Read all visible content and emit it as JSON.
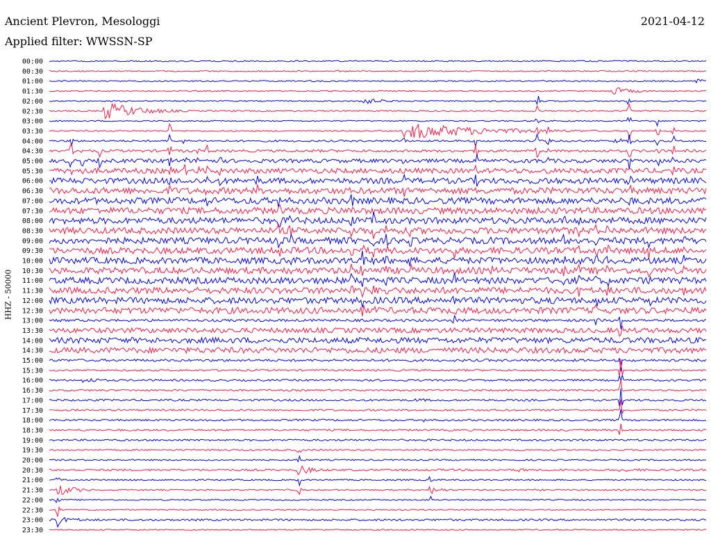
{
  "header": {
    "station": "Ancient Plevron, Mesologgi",
    "date": "2021-04-12",
    "filter": "Applied filter: WWSSN-SP"
  },
  "channel_label": "HHZ - 50000",
  "colors": {
    "trace_a": "#0000ee",
    "trace_b": "#ff1744",
    "background": "#ffffff",
    "text": "#000000"
  },
  "chart_data": {
    "type": "line",
    "title": "Ancient Plevron, Mesologgi",
    "subtitle": "Applied filter: WWSSN-SP",
    "ylabel": "HHZ - 50000",
    "xlabel": "",
    "grid": false,
    "legend": "none",
    "row_labels": [
      "00:00",
      "00:30",
      "01:00",
      "01:30",
      "02:00",
      "02:30",
      "03:00",
      "03:30",
      "04:00",
      "04:30",
      "05:00",
      "05:30",
      "06:00",
      "06:30",
      "07:00",
      "07:30",
      "08:00",
      "08:30",
      "09:00",
      "09:30",
      "10:00",
      "10:30",
      "11:00",
      "11:30",
      "12:00",
      "12:30",
      "13:00",
      "13:30",
      "14:00",
      "14:30",
      "15:00",
      "15:30",
      "16:00",
      "16:30",
      "17:00",
      "17:30",
      "18:00",
      "18:30",
      "19:00",
      "19:30",
      "20:00",
      "20:30",
      "21:00",
      "21:30",
      "22:00",
      "22:30",
      "23:00",
      "23:30"
    ],
    "row_colors": [
      "blue",
      "red"
    ],
    "x_minutes": [
      0,
      30
    ],
    "noise_level": [
      1,
      1,
      1,
      1,
      1,
      1,
      1,
      1,
      1.5,
      2,
      3,
      4,
      4.5,
      5,
      5,
      5,
      5,
      5,
      5,
      5,
      5,
      5,
      5,
      5,
      5,
      5,
      2,
      4,
      4.5,
      4.5,
      2,
      1.5,
      1.5,
      1.5,
      1.5,
      1.5,
      1.5,
      1.5,
      1.5,
      1.2,
      1.2,
      1.5,
      1.2,
      1.2,
      1,
      1,
      1.5,
      1
    ],
    "events": [
      {
        "row": 1,
        "minute": 11.5,
        "amplitude": 1,
        "duration": 0.6
      },
      {
        "row": 1,
        "minute": 13.2,
        "amplitude": 1.5,
        "duration": 1.2
      },
      {
        "row": 1,
        "minute": 29.0,
        "amplitude": 1.5,
        "duration": 0.6
      },
      {
        "row": 2,
        "minute": 22.5,
        "amplitude": 1.5,
        "duration": 1.0
      },
      {
        "row": 2,
        "minute": 29.5,
        "amplitude": 5,
        "duration": 0.6
      },
      {
        "row": 3,
        "minute": 14.8,
        "amplitude": 1.5,
        "duration": 1.2
      },
      {
        "row": 3,
        "minute": 25.6,
        "amplitude": 7,
        "duration": 1.0
      },
      {
        "row": 4,
        "minute": 6.5,
        "amplitude": 1.2,
        "duration": 0.8
      },
      {
        "row": 4,
        "minute": 14.0,
        "amplitude": 7,
        "duration": 1.0
      },
      {
        "row": 5,
        "minute": 2.5,
        "amplitude": 14,
        "duration": 1.6
      },
      {
        "row": 5,
        "minute": 7.2,
        "amplitude": 1.5,
        "duration": 0.8
      },
      {
        "row": 5,
        "minute": 8.3,
        "amplitude": 1.5,
        "duration": 0.8
      },
      {
        "row": 7,
        "minute": 16.5,
        "amplitude": 12,
        "duration": 3.5
      },
      {
        "row": 8,
        "minute": 25.8,
        "amplitude": 5,
        "duration": 0.8
      },
      {
        "row": 10,
        "minute": 30.0,
        "amplitude": 10,
        "duration": 0.5
      }
    ],
    "spikes": [
      {
        "minute": 1.0,
        "row_from": 8,
        "row_to": 11,
        "amplitude": 14
      },
      {
        "minute": 1.5,
        "row_from": 9,
        "row_to": 12,
        "amplitude": 10
      },
      {
        "minute": 2.3,
        "row_from": 9,
        "row_to": 11,
        "amplitude": 10
      },
      {
        "minute": 5.5,
        "row_from": 7,
        "row_to": 13,
        "amplitude": 12
      },
      {
        "minute": 6.2,
        "row_from": 8,
        "row_to": 12,
        "amplitude": 10
      },
      {
        "minute": 6.8,
        "row_from": 9,
        "row_to": 11,
        "amplitude": 8
      },
      {
        "minute": 7.2,
        "row_from": 9,
        "row_to": 14,
        "amplitude": 10
      },
      {
        "minute": 7.8,
        "row_from": 10,
        "row_to": 13,
        "amplitude": 9
      },
      {
        "minute": 9.5,
        "row_from": 11,
        "row_to": 15,
        "amplitude": 10
      },
      {
        "minute": 10.5,
        "row_from": 14,
        "row_to": 19,
        "amplitude": 14
      },
      {
        "minute": 11.0,
        "row_from": 16,
        "row_to": 22,
        "amplitude": 14
      },
      {
        "minute": 13.8,
        "row_from": 14,
        "row_to": 23,
        "amplitude": 16
      },
      {
        "minute": 14.3,
        "row_from": 17,
        "row_to": 25,
        "amplitude": 16
      },
      {
        "minute": 14.8,
        "row_from": 16,
        "row_to": 25,
        "amplitude": 14
      },
      {
        "minute": 15.4,
        "row_from": 17,
        "row_to": 23,
        "amplitude": 12
      },
      {
        "minute": 16.2,
        "row_from": 7,
        "row_to": 13,
        "amplitude": 10
      },
      {
        "minute": 16.5,
        "row_from": 17,
        "row_to": 21,
        "amplitude": 12
      },
      {
        "minute": 18.5,
        "row_from": 18,
        "row_to": 26,
        "amplitude": 14
      },
      {
        "minute": 19.5,
        "row_from": 7,
        "row_to": 12,
        "amplitude": 12
      },
      {
        "minute": 20.2,
        "row_from": 17,
        "row_to": 21,
        "amplitude": 10
      },
      {
        "minute": 22.3,
        "row_from": 4,
        "row_to": 10,
        "amplitude": 14
      },
      {
        "minute": 22.8,
        "row_from": 7,
        "row_to": 12,
        "amplitude": 10
      },
      {
        "minute": 23.5,
        "row_from": 15,
        "row_to": 22,
        "amplitude": 12
      },
      {
        "minute": 24.2,
        "row_from": 16,
        "row_to": 24,
        "amplitude": 12
      },
      {
        "minute": 25.0,
        "row_from": 17,
        "row_to": 26,
        "amplitude": 14
      },
      {
        "minute": 25.5,
        "row_from": 17,
        "row_to": 23,
        "amplitude": 12
      },
      {
        "minute": 26.5,
        "row_from": 4,
        "row_to": 14,
        "amplitude": 14
      },
      {
        "minute": 27.4,
        "row_from": 18,
        "row_to": 24,
        "amplitude": 14
      },
      {
        "minute": 27.8,
        "row_from": 6,
        "row_to": 10,
        "amplitude": 12
      },
      {
        "minute": 28.5,
        "row_from": 7,
        "row_to": 12,
        "amplitude": 10
      },
      {
        "minute": 29.0,
        "row_from": 18,
        "row_to": 23,
        "amplitude": 10
      },
      {
        "minute": 26.1,
        "row_from": 26,
        "row_to": 37,
        "amplitude": 18
      },
      {
        "minute": 0.4,
        "row_from": 42,
        "row_to": 46,
        "amplitude": 12
      },
      {
        "minute": 11.4,
        "row_from": 39,
        "row_to": 43,
        "amplitude": 12
      },
      {
        "minute": 17.4,
        "row_from": 42,
        "row_to": 44,
        "amplitude": 8
      },
      {
        "minute": 26.1,
        "row_from": 31,
        "row_to": 33,
        "amplitude": 10
      }
    ],
    "bursts": [
      {
        "row": 32,
        "minute": 1.5,
        "amplitude": 4,
        "duration": 1.2
      },
      {
        "row": 46,
        "minute": 0.1,
        "amplitude": 6,
        "duration": 1.2
      },
      {
        "row": 41,
        "minute": 11.3,
        "amplitude": 8,
        "duration": 0.8
      },
      {
        "row": 43,
        "minute": 0.5,
        "amplitude": 8,
        "duration": 0.8
      },
      {
        "row": 43,
        "minute": 17.4,
        "amplitude": 6,
        "duration": 0.6
      },
      {
        "row": 41,
        "minute": 21.4,
        "amplitude": 4,
        "duration": 0.5
      },
      {
        "row": 41,
        "minute": 26.0,
        "amplitude": 3,
        "duration": 1.8
      },
      {
        "row": 36,
        "minute": 17.0,
        "amplitude": 3,
        "duration": 0.8
      },
      {
        "row": 34,
        "minute": 16.6,
        "amplitude": 3,
        "duration": 1.2
      },
      {
        "row": 27,
        "minute": 12.0,
        "amplitude": 4,
        "duration": 0.5
      }
    ]
  }
}
